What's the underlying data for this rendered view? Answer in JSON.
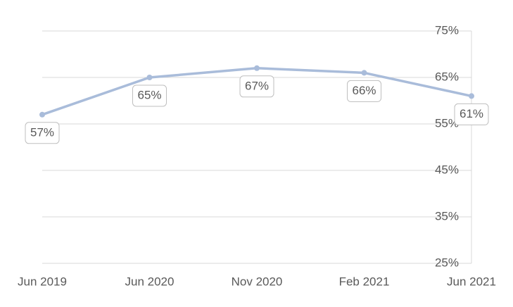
{
  "chart_data": {
    "type": "line",
    "categories": [
      "Jun 2019",
      "Jun 2020",
      "Nov 2020",
      "Feb 2021",
      "Jun 2021"
    ],
    "series": [
      {
        "color": "#a9bcda",
        "values": [
          57,
          65,
          67,
          66,
          61
        ],
        "value_labels": [
          "57%",
          "65%",
          "67%",
          "66%",
          "61%"
        ]
      }
    ],
    "ylim": [
      25,
      75
    ],
    "yticks": [
      {
        "value": 25,
        "label": "25%"
      },
      {
        "value": 35,
        "label": "35%"
      },
      {
        "value": 45,
        "label": "45%"
      },
      {
        "value": 55,
        "label": "55%"
      },
      {
        "value": 65,
        "label": "65%"
      },
      {
        "value": 75,
        "label": "75%"
      }
    ],
    "grid": true
  }
}
